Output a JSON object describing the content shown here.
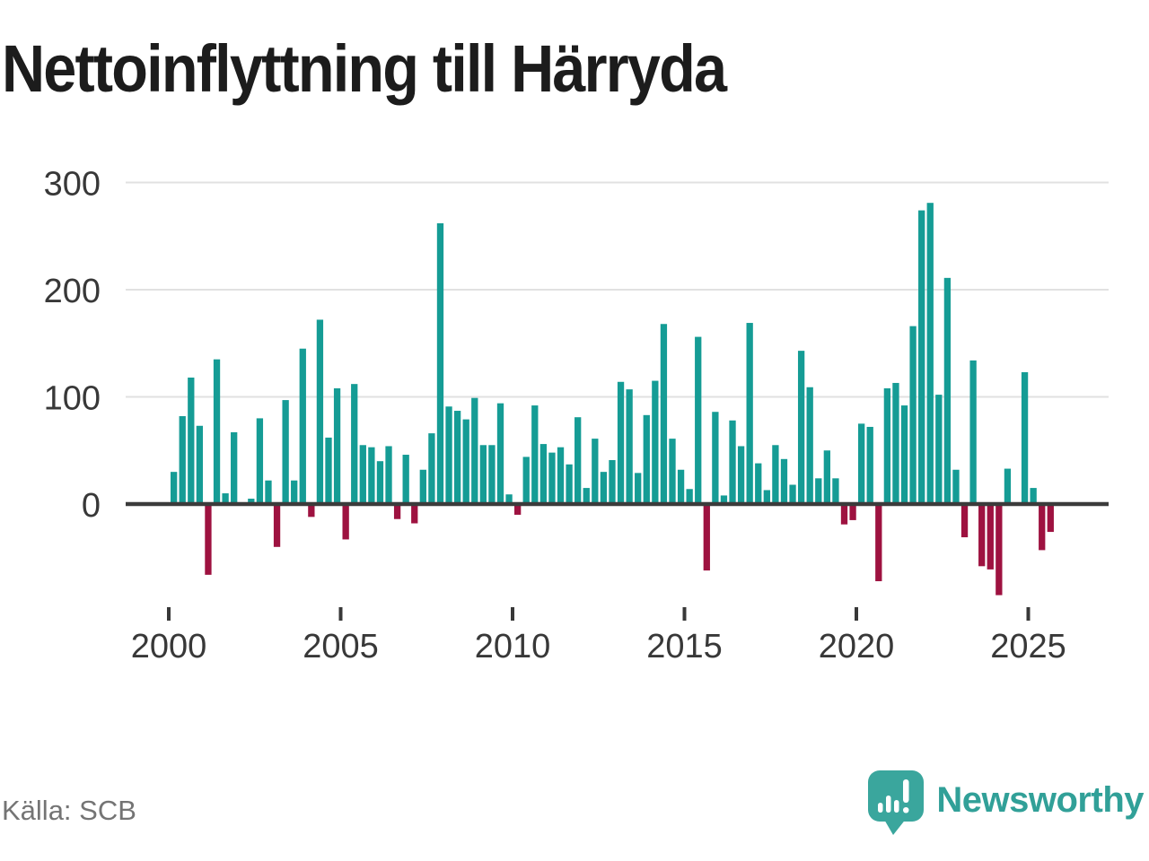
{
  "title": "Nettoinflyttning till Härryda",
  "source": "Källa: SCB",
  "branding": {
    "wordmark": "Newsworthy",
    "icon": "newsworthy-pin-bar-chart-icon",
    "icon_color": "#3aa69d",
    "text_color": "#31a098"
  },
  "chart_data": {
    "type": "bar",
    "title": "Nettoinflyttning till Härryda",
    "frequency": "quarterly",
    "start": "2000-Q1",
    "end": "2025-Q3",
    "values": [
      30,
      82,
      118,
      73,
      -66,
      135,
      10,
      67,
      0,
      5,
      80,
      22,
      -40,
      97,
      22,
      145,
      -12,
      172,
      62,
      108,
      -33,
      112,
      55,
      53,
      40,
      54,
      -14,
      46,
      -18,
      32,
      66,
      262,
      91,
      87,
      79,
      99,
      55,
      55,
      94,
      9,
      -10,
      44,
      92,
      56,
      48,
      53,
      37,
      81,
      15,
      61,
      30,
      41,
      114,
      107,
      29,
      83,
      115,
      168,
      61,
      32,
      14,
      156,
      -62,
      86,
      8,
      78,
      54,
      169,
      38,
      13,
      55,
      42,
      18,
      143,
      109,
      24,
      50,
      24,
      -19,
      -15,
      75,
      72,
      -72,
      108,
      113,
      92,
      166,
      274,
      281,
      102,
      211,
      32,
      -31,
      134,
      -58,
      -61,
      -85,
      33,
      0,
      123,
      15,
      -43,
      -26
    ],
    "x_tick_labels": [
      "2000",
      "2005",
      "2010",
      "2015",
      "2020",
      "2025"
    ],
    "y_ticks": [
      0,
      100,
      200,
      300
    ],
    "y_tick_labels": [
      "0",
      "100",
      "200",
      "300"
    ],
    "ylim": [
      -100,
      300
    ],
    "grid": "horizontal",
    "legend": "none",
    "positive_color": "#159c95",
    "negative_color": "#9e1240",
    "grid_color": "#e1e1e1",
    "axis_color": "#3b3b3b",
    "label_color": "#383838"
  }
}
